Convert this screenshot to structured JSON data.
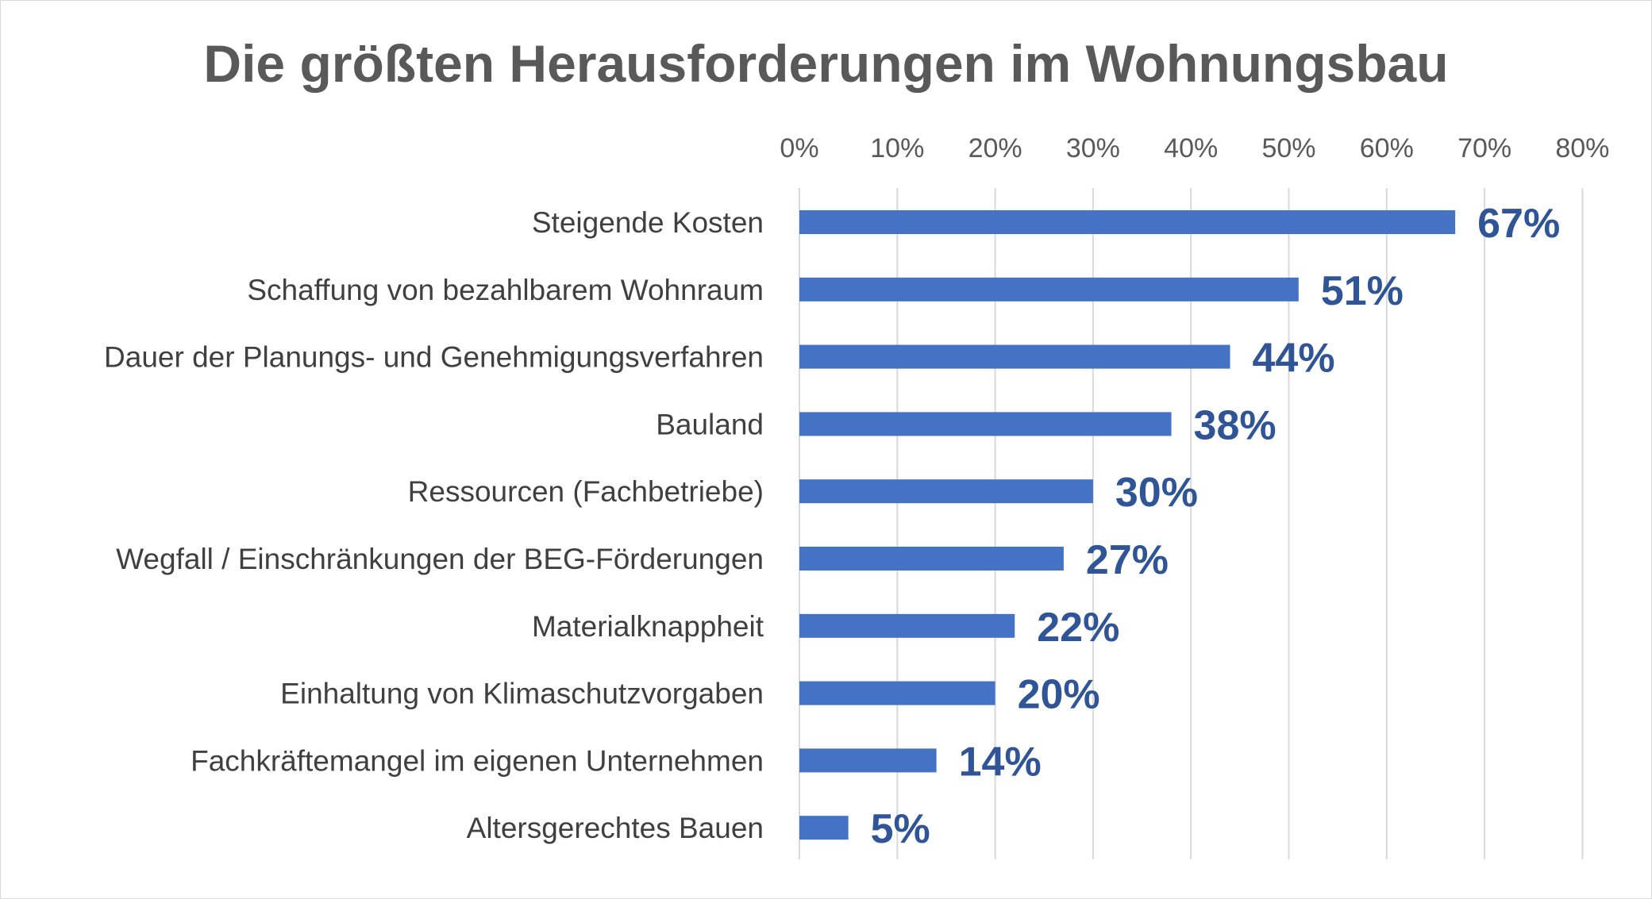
{
  "chart_data": {
    "type": "bar",
    "orientation": "horizontal",
    "title": "Die größten Herausforderungen im Wohnungsbau",
    "xlabel": "",
    "ylabel": "",
    "xlim": [
      0,
      80
    ],
    "x_ticks": [
      0,
      10,
      20,
      30,
      40,
      50,
      60,
      70,
      80
    ],
    "x_tick_labels": [
      "0%",
      "10%",
      "20%",
      "30%",
      "40%",
      "50%",
      "60%",
      "70%",
      "80%"
    ],
    "x_axis_position": "top",
    "grid": "vertical",
    "legend": "none",
    "categories": [
      "Steigende Kosten",
      "Schaffung von bezahlbarem Wohnraum",
      "Dauer der Planungs- und Genehmigungsverfahren",
      "Bauland",
      "Ressourcen (Fachbetriebe)",
      "Wegfall / Einschränkungen der BEG-Förderungen",
      "Materialknappheit",
      "Einhaltung von Klimaschutzvorgaben",
      "Fachkräftemangel im eigenen Unternehmen",
      "Altersgerechtes Bauen"
    ],
    "values": [
      67,
      51,
      44,
      38,
      30,
      27,
      22,
      20,
      14,
      5
    ],
    "data_labels": [
      "67%",
      "51%",
      "44%",
      "38%",
      "30%",
      "27%",
      "22%",
      "20%",
      "14%",
      "5%"
    ],
    "colors": {
      "bar": "#4472c4",
      "data_label": "#2f5597",
      "gridline": "#d9d9d9",
      "title": "#595959"
    }
  }
}
